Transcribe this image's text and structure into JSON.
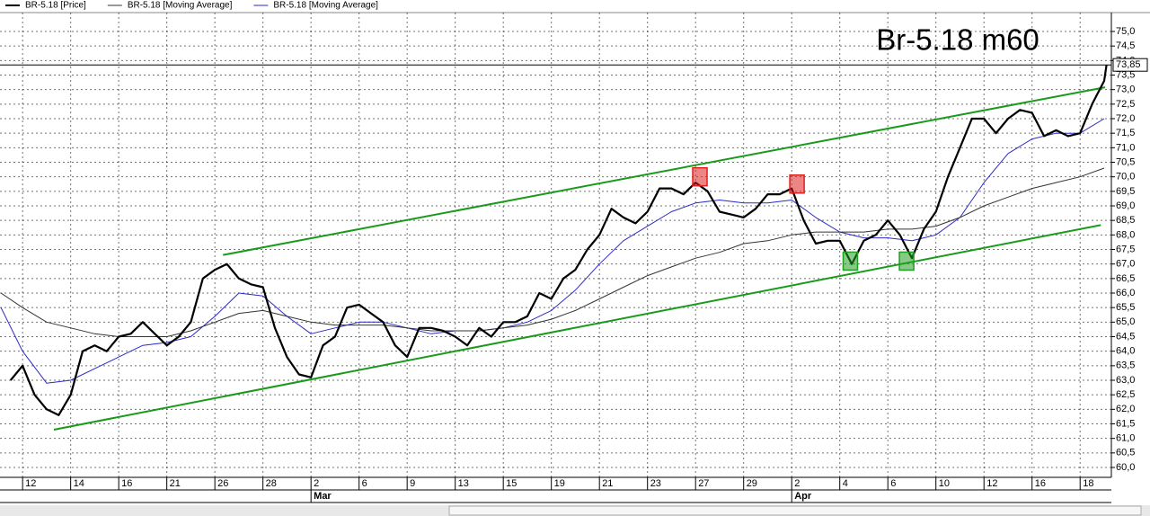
{
  "chart_data": {
    "type": "line",
    "title": "Br-5.18 m60",
    "series": [
      {
        "name": "BR-5.18 [Price]",
        "color": "#000000",
        "width": 2.2,
        "x": [
          -0.25,
          0,
          0.25,
          0.5,
          0.75,
          1,
          1.25,
          1.5,
          1.75,
          2,
          2.25,
          2.5,
          2.75,
          3,
          3.25,
          3.5,
          3.75,
          4,
          4.25,
          4.5,
          4.75,
          5,
          5.25,
          5.5,
          5.75,
          6,
          6.25,
          6.5,
          6.75,
          7,
          7.25,
          7.5,
          7.75,
          8,
          8.25,
          8.5,
          8.75,
          9,
          9.25,
          9.5,
          9.75,
          10,
          10.25,
          10.5,
          10.75,
          11,
          11.25,
          11.5,
          11.75,
          12,
          12.25,
          12.5,
          12.75,
          13,
          13.25,
          13.5,
          13.75,
          14,
          14.25,
          14.5,
          14.75,
          15,
          15.25,
          15.5,
          15.75,
          16,
          16.25,
          16.5,
          16.75,
          17,
          17.25,
          17.5,
          17.75,
          18,
          18.25,
          18.5,
          18.75,
          19,
          19.25,
          19.5,
          19.75,
          20,
          20.25,
          20.5,
          20.75,
          21,
          21.25,
          21.5,
          21.75,
          22,
          22.25,
          22.5,
          22.55
        ],
        "values": [
          63.0,
          63.5,
          62.5,
          62.0,
          61.8,
          62.5,
          64.0,
          64.2,
          64.0,
          64.5,
          64.6,
          65.0,
          64.6,
          64.2,
          64.5,
          65.0,
          66.5,
          66.8,
          67.0,
          66.5,
          66.3,
          66.2,
          64.8,
          63.8,
          63.2,
          63.1,
          64.2,
          64.5,
          65.5,
          65.6,
          65.3,
          65.0,
          64.2,
          63.8,
          64.8,
          64.8,
          64.7,
          64.5,
          64.2,
          64.8,
          64.5,
          65.0,
          65.0,
          65.2,
          66.0,
          65.8,
          66.5,
          66.8,
          67.5,
          68.0,
          68.9,
          68.6,
          68.4,
          68.8,
          69.6,
          69.6,
          69.4,
          69.8,
          69.5,
          68.8,
          68.7,
          68.6,
          68.9,
          69.4,
          69.4,
          69.6,
          68.5,
          67.7,
          67.8,
          67.8,
          67.0,
          67.8,
          68.0,
          68.5,
          68.0,
          67.2,
          68.2,
          68.8,
          70.0,
          71.0,
          72.0,
          72.0,
          71.5,
          72.0,
          72.3,
          72.2,
          71.4,
          71.6,
          71.4,
          71.5,
          72.5,
          73.3,
          73.85
        ]
      },
      {
        "name": "BR-5.18 [Moving Average]",
        "color": "#333333",
        "width": 1,
        "x": [
          -0.45,
          0,
          0.5,
          1,
          1.5,
          2,
          2.5,
          3,
          3.5,
          4,
          4.5,
          5,
          5.5,
          6,
          6.5,
          7,
          7.5,
          8,
          8.5,
          9,
          9.5,
          10,
          10.5,
          11,
          11.5,
          12,
          12.5,
          13,
          13.5,
          14,
          14.5,
          15,
          15.5,
          16,
          16.5,
          17,
          17.5,
          18,
          18.5,
          19,
          19.5,
          20,
          20.5,
          21,
          21.5,
          22,
          22.5
        ],
        "values": [
          66.0,
          65.5,
          65.0,
          64.8,
          64.6,
          64.5,
          64.5,
          64.5,
          64.7,
          65.0,
          65.3,
          65.4,
          65.2,
          65.0,
          64.9,
          64.9,
          64.9,
          64.8,
          64.7,
          64.7,
          64.7,
          64.8,
          64.9,
          65.1,
          65.4,
          65.8,
          66.2,
          66.6,
          66.9,
          67.2,
          67.4,
          67.7,
          67.8,
          68.0,
          68.1,
          68.1,
          68.1,
          68.2,
          68.2,
          68.3,
          68.6,
          69.0,
          69.3,
          69.6,
          69.8,
          70.0,
          70.3
        ]
      },
      {
        "name": "BR-5.18 [Moving Average]",
        "color": "#2a2ac8",
        "width": 1,
        "x": [
          -0.45,
          0,
          0.5,
          1,
          1.5,
          2,
          2.5,
          3,
          3.5,
          4,
          4.5,
          5,
          5.5,
          6,
          6.5,
          7,
          7.5,
          8,
          8.5,
          9,
          9.5,
          10,
          10.5,
          11,
          11.5,
          12,
          12.5,
          13,
          13.5,
          14,
          14.5,
          15,
          15.5,
          16,
          16.5,
          17,
          17.5,
          18,
          18.5,
          19,
          19.5,
          20,
          20.5,
          21,
          21.5,
          22,
          22.5
        ],
        "values": [
          65.5,
          64.0,
          62.9,
          63.0,
          63.4,
          63.8,
          64.2,
          64.3,
          64.5,
          65.2,
          66.0,
          65.9,
          65.2,
          64.6,
          64.8,
          65.0,
          65.0,
          64.8,
          64.6,
          64.7,
          64.7,
          64.8,
          65.0,
          65.4,
          66.1,
          67.0,
          67.8,
          68.3,
          68.8,
          69.1,
          69.2,
          69.1,
          69.1,
          69.2,
          68.6,
          68.1,
          67.9,
          67.9,
          67.8,
          68.0,
          68.6,
          69.8,
          70.8,
          71.3,
          71.5,
          71.5,
          72.0
        ]
      }
    ],
    "trendlines": [
      {
        "color": "#1a9a1a",
        "x": [
          4.17,
          22.52
        ],
        "y": [
          67.31,
          73.08
        ]
      },
      {
        "color": "#1a9a1a",
        "x": [
          0.65,
          22.43
        ],
        "y": [
          61.3,
          68.34
        ]
      }
    ],
    "highlights": [
      {
        "color": "#e02020",
        "x": 14.09,
        "y": 70.0
      },
      {
        "color": "#e02020",
        "x": 16.11,
        "y": 69.75
      },
      {
        "color": "#20a020",
        "x": 17.22,
        "y": 67.1
      },
      {
        "color": "#20a020",
        "x": 18.39,
        "y": 67.1
      }
    ],
    "last_price": {
      "value": 73.85,
      "label": "73,85"
    },
    "xlim": [
      -0.47,
      22.65
    ],
    "ylim": [
      59.66,
      75.65
    ],
    "xticks": [
      {
        "value": 0,
        "label": "12"
      },
      {
        "value": 1,
        "label": "14"
      },
      {
        "value": 2,
        "label": "16"
      },
      {
        "value": 3,
        "label": "21"
      },
      {
        "value": 4,
        "label": "26"
      },
      {
        "value": 5,
        "label": "28"
      },
      {
        "value": 6,
        "label": "2"
      },
      {
        "value": 7,
        "label": "6"
      },
      {
        "value": 8,
        "label": "9"
      },
      {
        "value": 9,
        "label": "13"
      },
      {
        "value": 10,
        "label": "15"
      },
      {
        "value": 11,
        "label": "19"
      },
      {
        "value": 12,
        "label": "21"
      },
      {
        "value": 13,
        "label": "23"
      },
      {
        "value": 14,
        "label": "27"
      },
      {
        "value": 15,
        "label": "29"
      },
      {
        "value": 16,
        "label": "2"
      },
      {
        "value": 17,
        "label": "4"
      },
      {
        "value": 18,
        "label": "6"
      },
      {
        "value": 19,
        "label": "10"
      },
      {
        "value": 20,
        "label": "12"
      },
      {
        "value": 21,
        "label": "16"
      },
      {
        "value": 22,
        "label": "18"
      }
    ],
    "months": [
      {
        "value": 6,
        "label": "Mar"
      },
      {
        "value": 16,
        "label": "Apr"
      }
    ],
    "yticks": [
      {
        "value": 60,
        "label": "60,0"
      },
      {
        "value": 60.5,
        "label": "60,5"
      },
      {
        "value": 61,
        "label": "61,0"
      },
      {
        "value": 61.5,
        "label": "61,5"
      },
      {
        "value": 62,
        "label": "62,0"
      },
      {
        "value": 62.5,
        "label": "62,5"
      },
      {
        "value": 63,
        "label": "63,0"
      },
      {
        "value": 63.5,
        "label": "63,5"
      },
      {
        "value": 64,
        "label": "64,0"
      },
      {
        "value": 64.5,
        "label": "64,5"
      },
      {
        "value": 65,
        "label": "65,0"
      },
      {
        "value": 65.5,
        "label": "65,5"
      },
      {
        "value": 66,
        "label": "66,0"
      },
      {
        "value": 66.5,
        "label": "66,5"
      },
      {
        "value": 67,
        "label": "67,0"
      },
      {
        "value": 67.5,
        "label": "67,5"
      },
      {
        "value": 68,
        "label": "68,0"
      },
      {
        "value": 68.5,
        "label": "68,5"
      },
      {
        "value": 69,
        "label": "69,0"
      },
      {
        "value": 69.5,
        "label": "69,5"
      },
      {
        "value": 70,
        "label": "70,0"
      },
      {
        "value": 70.5,
        "label": "70,5"
      },
      {
        "value": 71,
        "label": "71,0"
      },
      {
        "value": 71.5,
        "label": "71,5"
      },
      {
        "value": 72,
        "label": "72,0"
      },
      {
        "value": 72.5,
        "label": "72,5"
      },
      {
        "value": 73,
        "label": "73,0"
      },
      {
        "value": 73.5,
        "label": "73,5"
      },
      {
        "value": 74,
        "label": "74,0"
      },
      {
        "value": 74.5,
        "label": "74,5"
      },
      {
        "value": 75,
        "label": "75,0"
      }
    ],
    "grid": true
  }
}
